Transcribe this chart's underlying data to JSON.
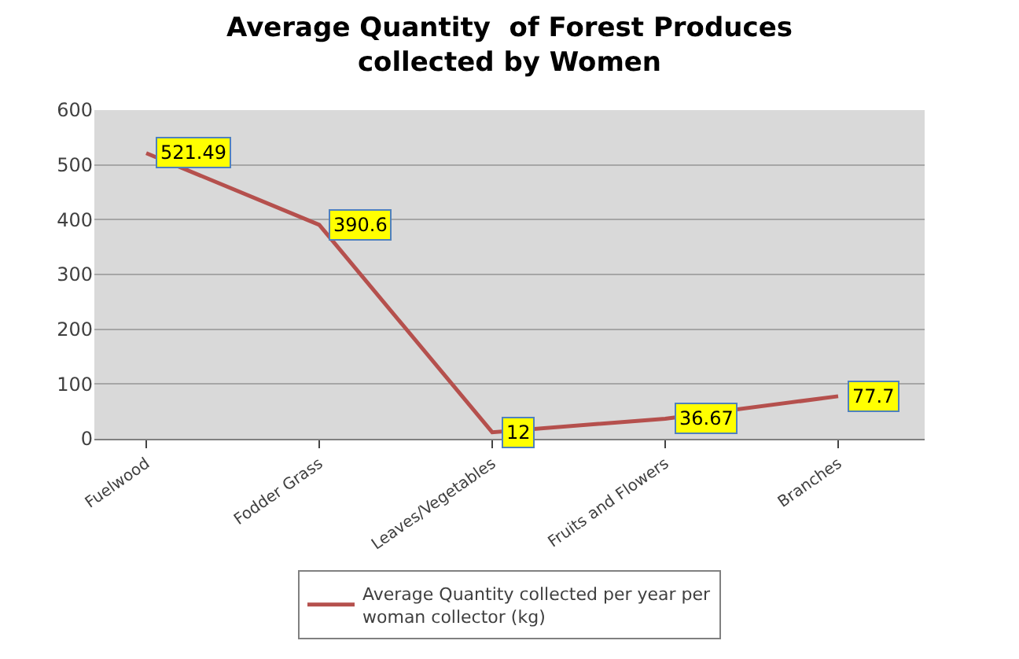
{
  "chart_data": {
    "type": "line",
    "title": "Average Quantity  of Forest Produces collected by Women",
    "categories": [
      "Fuelwood",
      "Fodder Grass",
      "Leaves/Vegetables",
      "Fruits and Flowers",
      "Branches"
    ],
    "series": [
      {
        "name": "Average Quantity collected per year per woman collector (kg)",
        "color": "#b5504d",
        "values": [
          521.49,
          390.6,
          12,
          36.67,
          77.7
        ]
      }
    ],
    "ylim": [
      0,
      600
    ],
    "yticks": [
      0,
      100,
      200,
      300,
      400,
      500,
      600
    ],
    "grid": "y",
    "legend": "bottom",
    "data_labels": true,
    "marker": "none",
    "line_style": "solid"
  }
}
